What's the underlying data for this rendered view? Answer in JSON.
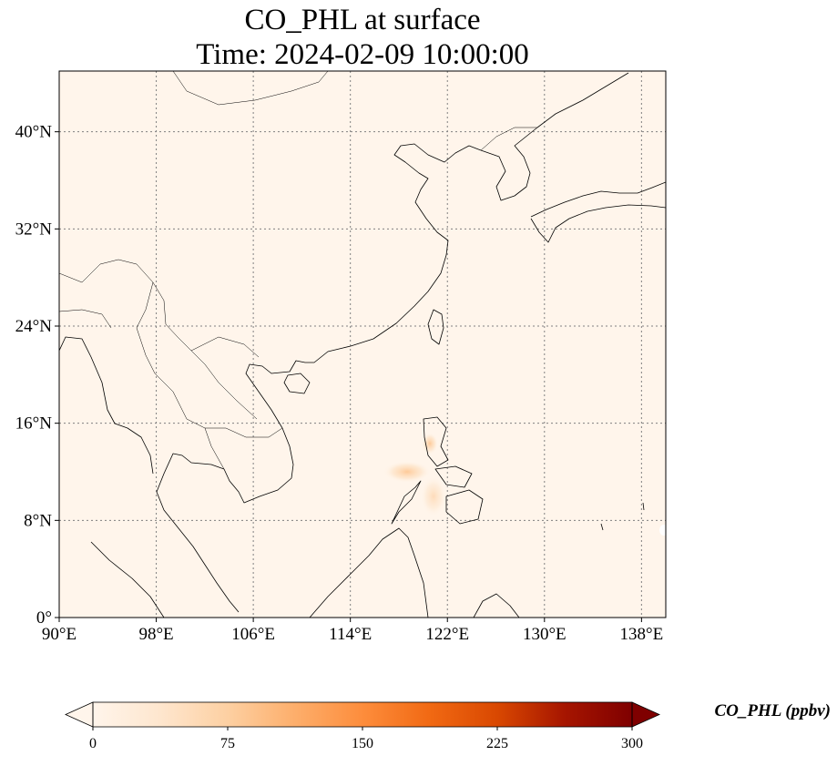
{
  "title": {
    "line1": "CO_PHL at surface",
    "line2": "Time: 2024-02-09 10:00:00"
  },
  "map": {
    "extent": {
      "lon": [
        90,
        140
      ],
      "lat": [
        0,
        45
      ]
    },
    "lon_ticks": [
      {
        "value": 90,
        "label": "90°E"
      },
      {
        "value": 98,
        "label": "98°E"
      },
      {
        "value": 106,
        "label": "106°E"
      },
      {
        "value": 114,
        "label": "114°E"
      },
      {
        "value": 122,
        "label": "122°E"
      },
      {
        "value": 130,
        "label": "130°E"
      },
      {
        "value": 138,
        "label": "138°E"
      }
    ],
    "lat_ticks": [
      {
        "value": 0,
        "label": "0°"
      },
      {
        "value": 8,
        "label": "8°N"
      },
      {
        "value": 16,
        "label": "16°N"
      },
      {
        "value": 24,
        "label": "24°N"
      },
      {
        "value": 32,
        "label": "32°N"
      },
      {
        "value": 40,
        "label": "40°N"
      }
    ],
    "gridlines": true,
    "background_color": "#fff5eb",
    "plume_color": "#fdd6ad"
  },
  "colorbar": {
    "label": "CO_PHL (ppbv)",
    "colormap": "OrRd",
    "range": [
      0,
      300
    ],
    "extend": "both",
    "ticks": [
      {
        "value": 0,
        "label": "0"
      },
      {
        "value": 75,
        "label": "75"
      },
      {
        "value": 150,
        "label": "150"
      },
      {
        "value": 225,
        "label": "225"
      },
      {
        "value": 300,
        "label": "300"
      }
    ],
    "stops": [
      "#fff5eb",
      "#fee6ce",
      "#fdd0a2",
      "#fdae6b",
      "#fd8d3c",
      "#f16913",
      "#d94801",
      "#a61500",
      "#7f0000"
    ]
  }
}
